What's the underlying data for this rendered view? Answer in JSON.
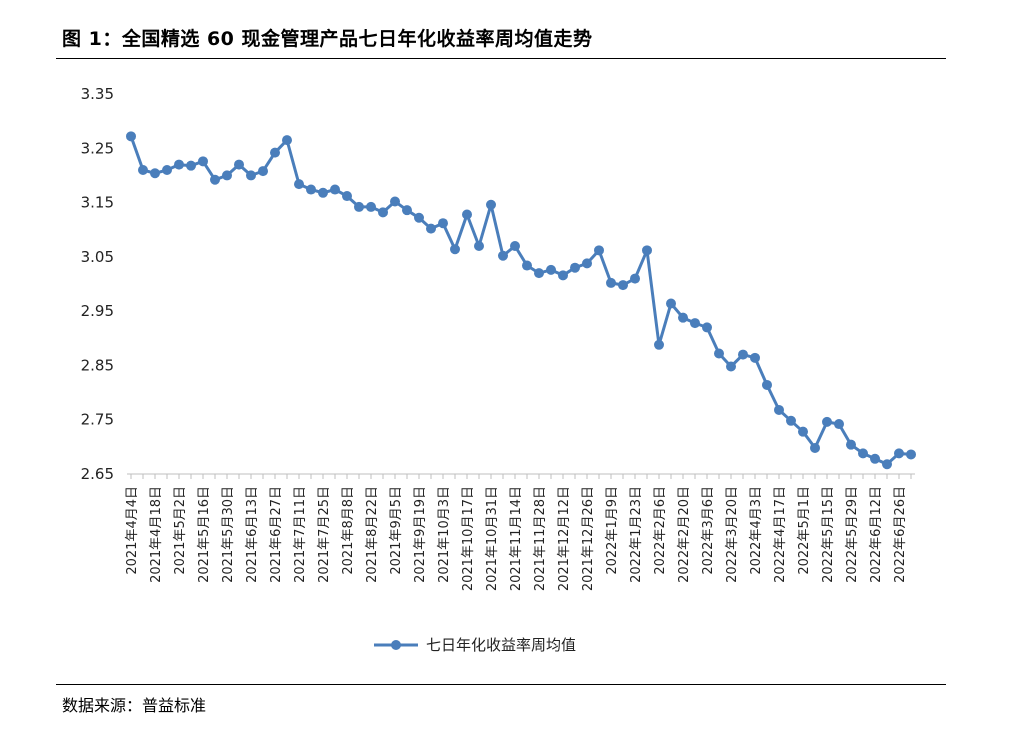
{
  "figure_title": "图 1：全国精选 60 现金管理产品七日年化收益率周均值走势",
  "source_note": "数据来源：普益标准",
  "colors": {
    "series": "#4a7ebb",
    "axis": "#bfbfbf",
    "text": "#222222"
  },
  "chart_data": {
    "type": "line",
    "ylim": [
      2.65,
      3.35
    ],
    "yticks": [
      "3.35",
      "3.25",
      "3.15",
      "3.05",
      "2.95",
      "2.85",
      "2.75",
      "2.65"
    ],
    "grid": false,
    "legend_position": "bottom-center",
    "x_tick_labels": [
      "2021年4月4日",
      "2021年4月18日",
      "2021年5月2日",
      "2021年5月16日",
      "2021年5月30日",
      "2021年6月13日",
      "2021年6月27日",
      "2021年7月11日",
      "2021年7月25日",
      "2021年8月8日",
      "2021年8月22日",
      "2021年9月5日",
      "2021年9月19日",
      "2021年10月3日",
      "2021年10月17日",
      "2021年10月31日",
      "2021年11月14日",
      "2021年11月28日",
      "2021年12月12日",
      "2021年12月26日",
      "2022年1月9日",
      "2022年1月23日",
      "2022年2月6日",
      "2022年2月20日",
      "2022年3月6日",
      "2022年3月20日",
      "2022年4月3日",
      "2022年4月17日",
      "2022年5月1日",
      "2022年5月15日",
      "2022年5月29日",
      "2022年6月12日",
      "2022年6月26日"
    ],
    "series": [
      {
        "name": "七日年化收益率周均值",
        "values": [
          3.272,
          3.21,
          3.204,
          3.21,
          3.22,
          3.218,
          3.226,
          3.192,
          3.2,
          3.22,
          3.2,
          3.208,
          3.242,
          3.265,
          3.184,
          3.174,
          3.168,
          3.174,
          3.162,
          3.142,
          3.142,
          3.132,
          3.152,
          3.136,
          3.122,
          3.102,
          3.112,
          3.064,
          3.128,
          3.07,
          3.146,
          3.052,
          3.07,
          3.034,
          3.02,
          3.026,
          3.016,
          3.03,
          3.038,
          3.062,
          3.002,
          2.998,
          3.01,
          3.062,
          2.888,
          2.964,
          2.938,
          2.928,
          2.92,
          2.872,
          2.848,
          2.87,
          2.864,
          2.814,
          2.768,
          2.748,
          2.728,
          2.698,
          2.746,
          2.742,
          2.704,
          2.688,
          2.678,
          2.668,
          2.688,
          2.686
        ]
      }
    ]
  }
}
